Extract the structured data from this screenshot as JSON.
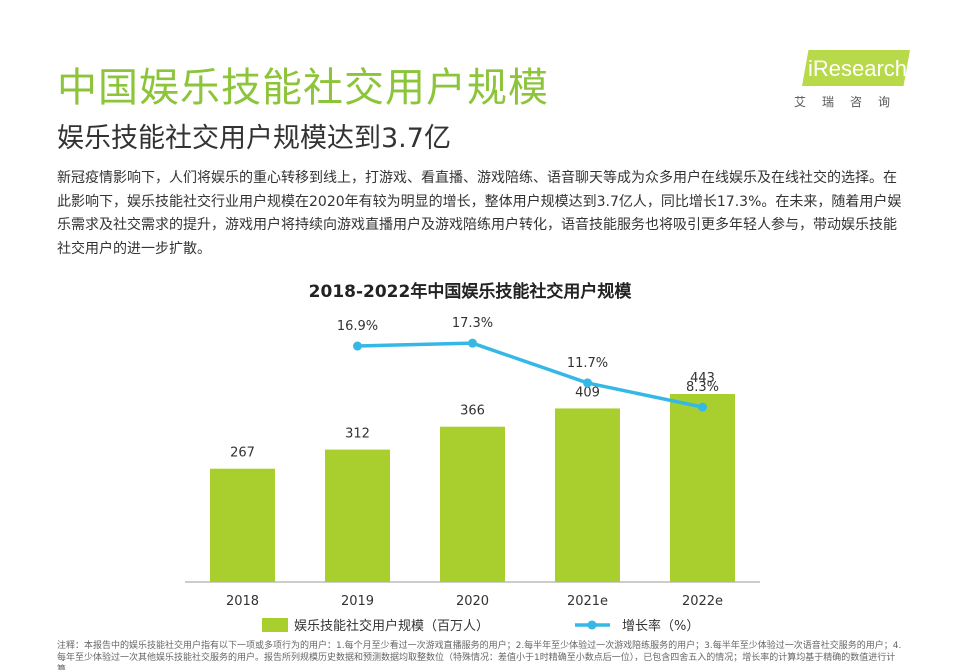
{
  "header": {
    "title": "中国娱乐技能社交用户规模",
    "subtitle": "娱乐技能社交用户规模达到3.7亿",
    "logo_text": "iResearch",
    "logo_cn": "艾瑞咨询"
  },
  "description": "新冠疫情影响下，人们将娱乐的重心转移到线上，打游戏、看直播、游戏陪练、语音聊天等成为众多用户在线娱乐及在线社交的选择。在此影响下，娱乐技能社交行业用户规模在2020年有较为明显的增长，整体用户规模达到3.7亿人，同比增长17.3%。在未来，随着用户娱乐需求及社交需求的提升，游戏用户将持续向游戏直播用户及游戏陪练用户转化，语音技能服务也将吸引更多年轻人参与，带动娱乐技能社交用户的进一步扩散。",
  "note": "注释：本报告中的娱乐技能社交用户指有以下一项或多项行为的用户：1.每个月至少看过一次游戏直播服务的用户；2.每半年至少体验过一次游戏陪练服务的用户；3.每半年至少体验过一次语音社交服务的用户；4.每年至少体验过一次其他娱乐技能社交服务的用户。报告所列规模历史数据和预测数据均取整数位（特殊情况：差值小于1时精确至小数点后一位），已包含四舍五入的情况；增长率的计算均基于精确的数值进行计算。",
  "colors": {
    "accent": "#8cc43a",
    "bar": "#a8cf2e",
    "line": "#35b8e6"
  },
  "chart_data": {
    "type": "bar",
    "title": "2018-2022年中国娱乐技能社交用户规模",
    "categories": [
      "2018",
      "2019",
      "2020",
      "2021e",
      "2022e"
    ],
    "series": [
      {
        "name": "娱乐技能社交用户规模（百万人）",
        "type": "bar",
        "values": [
          267,
          312,
          366,
          409,
          443
        ]
      },
      {
        "name": "增长率（%）",
        "type": "line",
        "values": [
          null,
          16.9,
          17.3,
          11.7,
          8.3
        ],
        "labels": [
          "",
          "16.9%",
          "17.3%",
          "11.7%",
          "8.3%"
        ]
      }
    ],
    "xlabel": "",
    "ylabel": "",
    "ylim": [
      0,
      500
    ],
    "ylim_rate": [
      0,
      20
    ],
    "grid": false,
    "legend": "bottom"
  }
}
